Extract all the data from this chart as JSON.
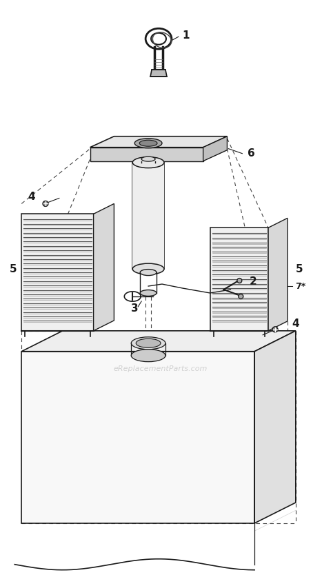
{
  "bg_color": "#ffffff",
  "line_color": "#1a1a1a",
  "dashed_color": "#444444",
  "watermark_text": "eReplacementParts.com",
  "watermark_color": "#c8c8c8",
  "figsize": [
    4.67,
    8.5
  ],
  "dpi": 100
}
